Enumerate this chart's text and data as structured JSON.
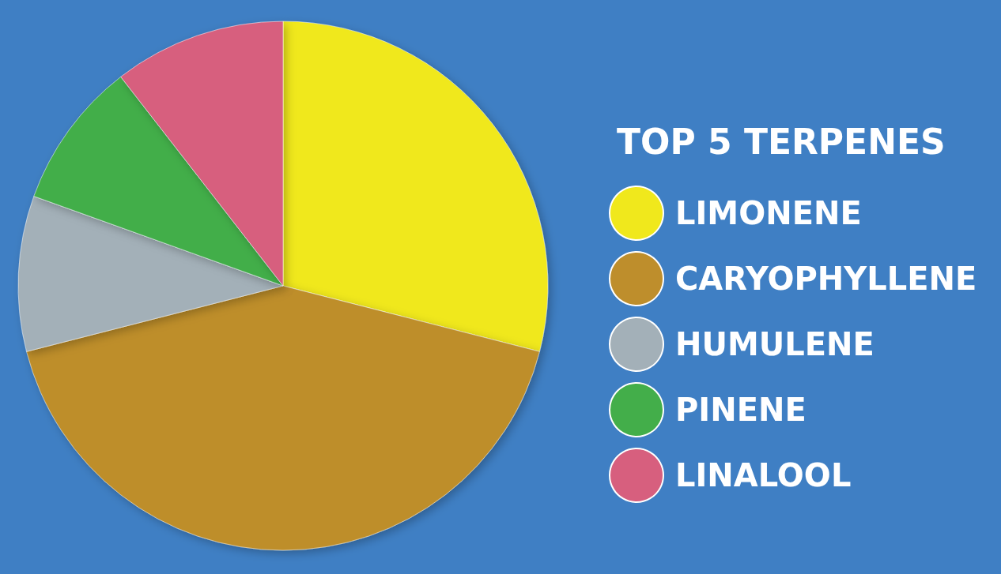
{
  "chart_data": {
    "type": "pie",
    "legend_title": "TOP 5 TERPENES",
    "categories": [
      "LIMONENE",
      "CARYOPHYLLENE",
      "HUMULENE",
      "PINENE",
      "LINALOOL"
    ],
    "values": [
      29,
      42,
      9.5,
      9,
      10.5
    ],
    "colors": [
      "#f0e81c",
      "#be8e2c",
      "#a3b0b8",
      "#43ae4a",
      "#d75f7e"
    ],
    "legend": "right"
  }
}
